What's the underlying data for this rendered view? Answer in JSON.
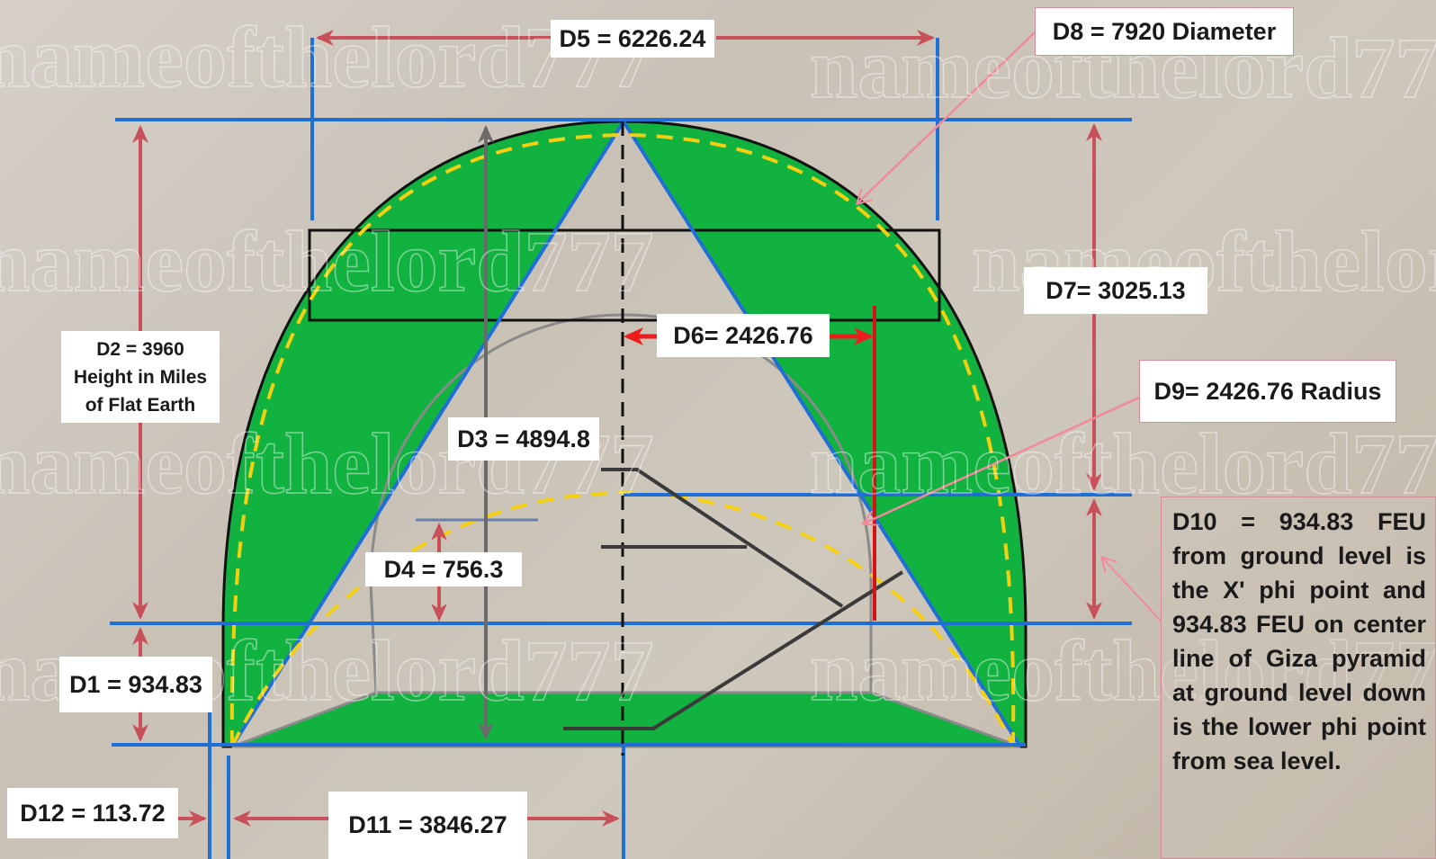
{
  "watermark": "nameofthelord777",
  "labels": {
    "d1": "D1 = 934.83",
    "d2_line1": "D2 = 3960",
    "d2_line2": "Height in Miles",
    "d2_line3": "of Flat Earth",
    "d3": "D3 = 4894.8",
    "d4": "D4 = 756.3",
    "d5": "D5 = 6226.24",
    "d6": "D6= 2426.76",
    "d7": "D7= 3025.13",
    "d8": "D8 = 7920 Diameter",
    "d9": "D9= 2426.76 Radius",
    "d10": "D10 = 934.83 FEU from ground level is the X' phi point and 934.83 FEU on center line of Giza pyramid at ground level down is the lower phi point from sea level.",
    "d11": "D11 = 3846.27",
    "d12": "D12 = 113.72"
  },
  "colors": {
    "green_fill": "#12b240",
    "blue_line": "#1f6fd6",
    "dim_arrow": "#c8505a",
    "red_arrow": "#ee1c1c",
    "yellow_dash": "#f5d010",
    "gray_line": "#8a8a8a"
  }
}
